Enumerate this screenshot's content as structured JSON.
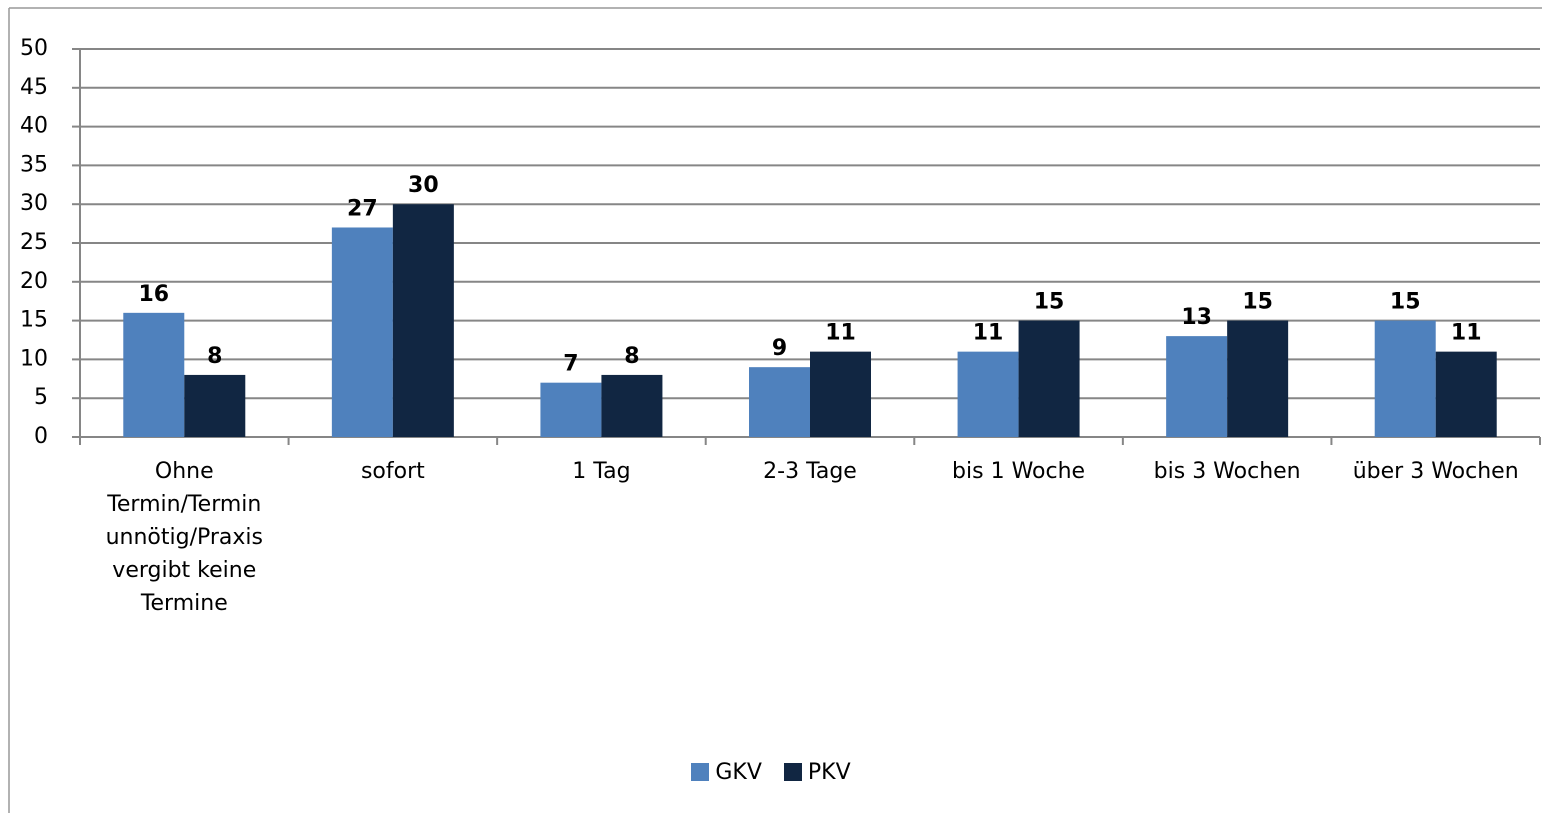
{
  "chart_data": {
    "type": "bar",
    "categories": [
      "Ohne Termin/Termin unnötig/Praxis vergibt keine Termine",
      "sofort",
      "1 Tag",
      "2-3 Tage",
      "bis 1 Woche",
      "bis 3 Wochen",
      "über 3 Wochen"
    ],
    "series": [
      {
        "name": "GKV",
        "color": "#4f81bd",
        "values": [
          16,
          27,
          7,
          9,
          11,
          13,
          15
        ]
      },
      {
        "name": "PKV",
        "color": "#112642",
        "values": [
          8,
          30,
          8,
          11,
          15,
          15,
          11
        ]
      }
    ],
    "ylim": [
      0,
      50
    ],
    "yticks": [
      0,
      5,
      10,
      15,
      20,
      25,
      30,
      35,
      40,
      45,
      50
    ],
    "grid": true,
    "legend": "bottom"
  }
}
